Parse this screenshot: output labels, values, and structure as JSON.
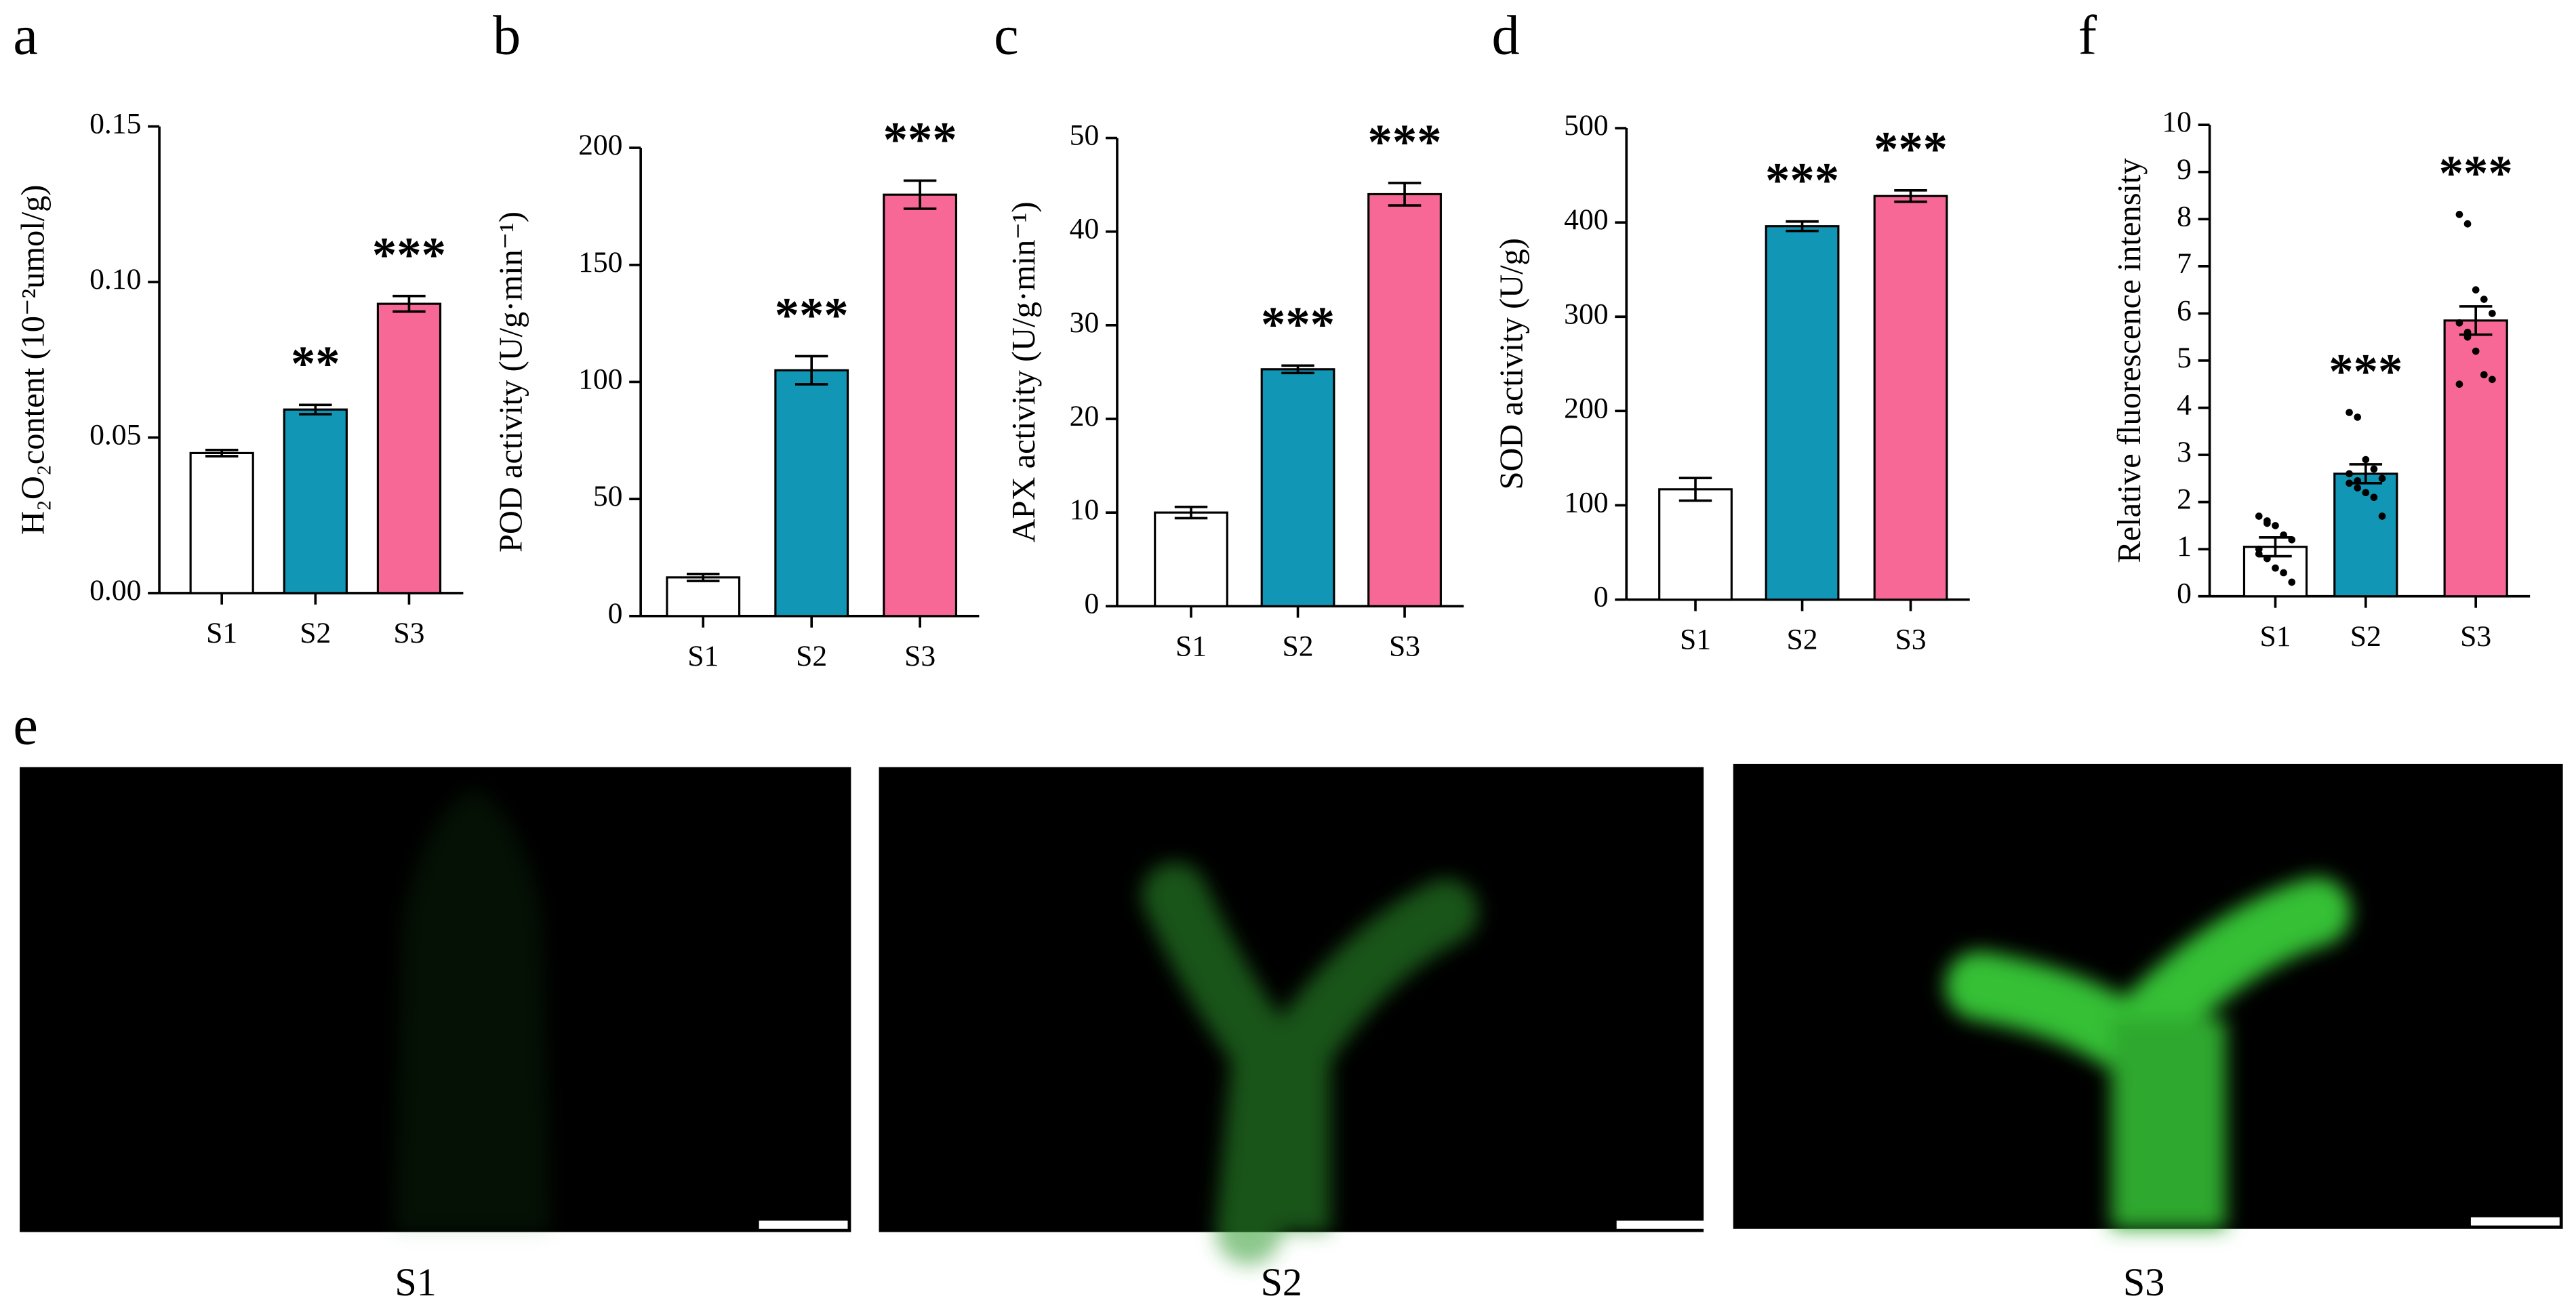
{
  "chart_data": [
    {
      "type": "bar",
      "panel": "a",
      "ylabel": "H₂O₂content (10⁻²umol/g)",
      "categories": [
        "S1",
        "S2",
        "S3"
      ],
      "values": [
        0.045,
        0.059,
        0.093
      ],
      "errors": [
        0.001,
        0.0015,
        0.0025
      ],
      "annotations": [
        null,
        "**",
        "***"
      ],
      "colors": [
        "#ffffff",
        "#1197b5",
        "#f76896"
      ],
      "ylim": [
        0,
        0.15
      ],
      "yticks": [
        {
          "value": 0,
          "label": "0.00"
        },
        0.05,
        {
          "value": 0.1,
          "label": "0.10"
        },
        0.15
      ]
    },
    {
      "type": "bar",
      "panel": "b",
      "ylabel": "POD activity (U/g·min⁻¹)",
      "categories": [
        "S1",
        "S2",
        "S3"
      ],
      "values": [
        16.5,
        105,
        180
      ],
      "errors": [
        1.5,
        6,
        6
      ],
      "annotations": [
        null,
        "***",
        "***"
      ],
      "colors": [
        "#ffffff",
        "#1197b5",
        "#f76896"
      ],
      "ylim": [
        0,
        200
      ],
      "yticks": [
        0,
        50,
        100,
        150,
        200
      ]
    },
    {
      "type": "bar",
      "panel": "c",
      "ylabel": "APX activity (U/g·min⁻¹)",
      "categories": [
        "S1",
        "S2",
        "S3"
      ],
      "values": [
        10,
        25.3,
        44
      ],
      "errors": [
        0.6,
        0.4,
        1.2
      ],
      "annotations": [
        null,
        "***",
        "***"
      ],
      "colors": [
        "#ffffff",
        "#1197b5",
        "#f76896"
      ],
      "ylim": [
        0,
        50
      ],
      "yticks": [
        0,
        10,
        20,
        30,
        40,
        50
      ]
    },
    {
      "type": "bar",
      "panel": "d",
      "ylabel": "SOD activity (U/g)",
      "categories": [
        "S1",
        "S2",
        "S3"
      ],
      "values": [
        117,
        396,
        428
      ],
      "errors": [
        12,
        5,
        6
      ],
      "annotations": [
        null,
        "***",
        "***"
      ],
      "colors": [
        "#ffffff",
        "#1197b5",
        "#f76896"
      ],
      "ylim": [
        0,
        500
      ],
      "yticks": [
        0,
        100,
        200,
        300,
        400,
        500
      ]
    },
    {
      "type": "bar",
      "panel": "f",
      "ylabel": "Relative fluorescence intensity",
      "categories": [
        "S1",
        "S2",
        "S3"
      ],
      "values": [
        1.05,
        2.6,
        5.85
      ],
      "errors": [
        0.2,
        0.2,
        0.3
      ],
      "annotations": [
        null,
        "***",
        "***"
      ],
      "points": [
        [
          1.7,
          1.6,
          1.5,
          1.3,
          1.2,
          0.9,
          0.8,
          0.6,
          0.5,
          0.3,
          1.0,
          1.55
        ],
        [
          3.9,
          3.8,
          2.9,
          2.7,
          2.5,
          2.4,
          2.3,
          2.2,
          2.1,
          1.7,
          2.6,
          2.45
        ],
        [
          8.1,
          7.9,
          6.5,
          6.3,
          6.0,
          5.8,
          5.6,
          5.2,
          4.7,
          4.6,
          4.5,
          5.5
        ]
      ],
      "colors": [
        "#ffffff",
        "#1197b5",
        "#f76896"
      ],
      "ylim": [
        0,
        10
      ],
      "yticks": [
        0,
        1,
        2,
        3,
        4,
        5,
        6,
        7,
        8,
        9,
        10
      ]
    }
  ],
  "image_panel": {
    "panel": "e",
    "labels": [
      "S1",
      "S2",
      "S3"
    ]
  }
}
